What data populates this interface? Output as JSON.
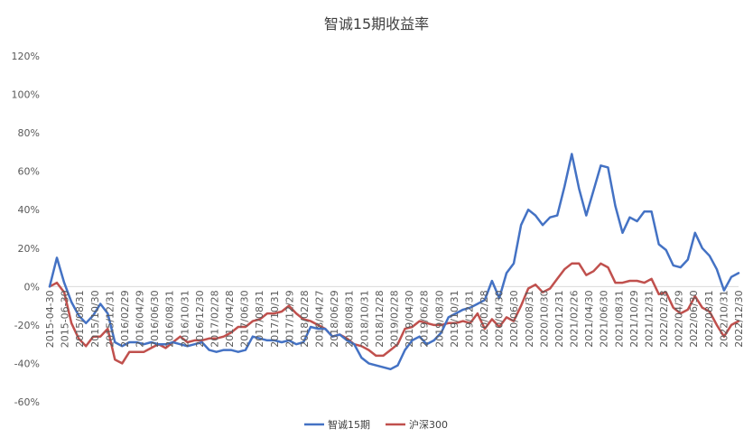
{
  "chart_data": {
    "type": "line",
    "title": "智诚15期收益率",
    "xlabel": "",
    "ylabel": "",
    "ylim": [
      -60,
      120
    ],
    "y_ticks": [
      120,
      100,
      80,
      60,
      40,
      20,
      0,
      -20,
      -40,
      -60
    ],
    "y_tick_labels": [
      "120%",
      "100%",
      "80%",
      "60%",
      "40%",
      "20%",
      "0%",
      "-20%",
      "-40%",
      "-60%"
    ],
    "x_tick_labels": [
      "2015-04-30",
      "2015-06-30",
      "2015/08/31",
      "2015/10/30",
      "2015/12/31",
      "2016/02/29",
      "2016/04/29",
      "2016/06/30",
      "2016/08/31",
      "2016/10/31",
      "2016/12/30",
      "2017/02/28",
      "2017/04/28",
      "2017/06/30",
      "2017/08/31",
      "2017/10/31",
      "2017/12/29",
      "2018/02/28",
      "2018/04/27",
      "2018/06/29",
      "2018/08/31",
      "2018/10/31",
      "2018/12/28",
      "2019/02/28",
      "2019/04/30",
      "2019/06/28",
      "2019/08/30",
      "2019/10/31",
      "2019/12/31",
      "2020/02/28",
      "2020/04/30",
      "2020/06/30",
      "2020/08/31",
      "2020/10/30",
      "2020/12/31",
      "2021/02/26",
      "2021/04/30",
      "2021/06/30",
      "2021/08/31",
      "2021/10/29",
      "2021/12/31",
      "2022/02/28",
      "2022/04/29",
      "2022/06/30",
      "2022/08/31",
      "2022/10/31",
      "2022/12/30"
    ],
    "grid": false,
    "legend_position": "bottom",
    "colors": {
      "series_1": "#4472C4",
      "series_2": "#C0504D",
      "zero_axis": "#d9d9d9"
    },
    "series": [
      {
        "name": "智诚15期",
        "values": [
          0,
          15,
          2,
          -8,
          -15,
          -19,
          -15,
          -9,
          -14,
          -29,
          -31,
          -29,
          -29,
          -30,
          -29,
          -30,
          -30,
          -29,
          -30,
          -31,
          -30,
          -29,
          -33,
          -34,
          -33,
          -33,
          -34,
          -33,
          -26,
          -27,
          -28,
          -28,
          -29,
          -28,
          -30,
          -29,
          -21,
          -22,
          -22,
          -26,
          -25,
          -28,
          -30,
          -37,
          -40,
          -41,
          -42,
          -43,
          -41,
          -33,
          -28,
          -26,
          -30,
          -28,
          -24,
          -16,
          -14,
          -12,
          -11,
          -9,
          -7,
          3,
          -6,
          7,
          12,
          32,
          40,
          37,
          32,
          36,
          37,
          52,
          69,
          51,
          37,
          50,
          63,
          62,
          42,
          28,
          36,
          34,
          39,
          39,
          22,
          19,
          11,
          10,
          14,
          28,
          20,
          16,
          9,
          -2,
          5,
          7
        ]
      },
      {
        "name": "沪深300",
        "values": [
          0,
          2,
          -3,
          -19,
          -27,
          -31,
          -26,
          -26,
          -22,
          -38,
          -40,
          -34,
          -34,
          -34,
          -32,
          -30,
          -32,
          -29,
          -26,
          -29,
          -28,
          -28,
          -27,
          -27,
          -26,
          -24,
          -21,
          -21,
          -18,
          -17,
          -14,
          -14,
          -13,
          -10,
          -14,
          -17,
          -18,
          -20,
          -22,
          -26,
          -25,
          -27,
          -30,
          -31,
          -33,
          -36,
          -36,
          -33,
          -30,
          -22,
          -21,
          -18,
          -19,
          -20,
          -20,
          -19,
          -19,
          -18,
          -19,
          -14,
          -22,
          -17,
          -21,
          -16,
          -18,
          -10,
          -1,
          1,
          -3,
          -1,
          4,
          9,
          12,
          12,
          6,
          8,
          12,
          10,
          2,
          2,
          3,
          3,
          2,
          4,
          -4,
          -3,
          -11,
          -14,
          -12,
          -5,
          -11,
          -13,
          -20,
          -26,
          -20,
          -18
        ]
      }
    ]
  }
}
